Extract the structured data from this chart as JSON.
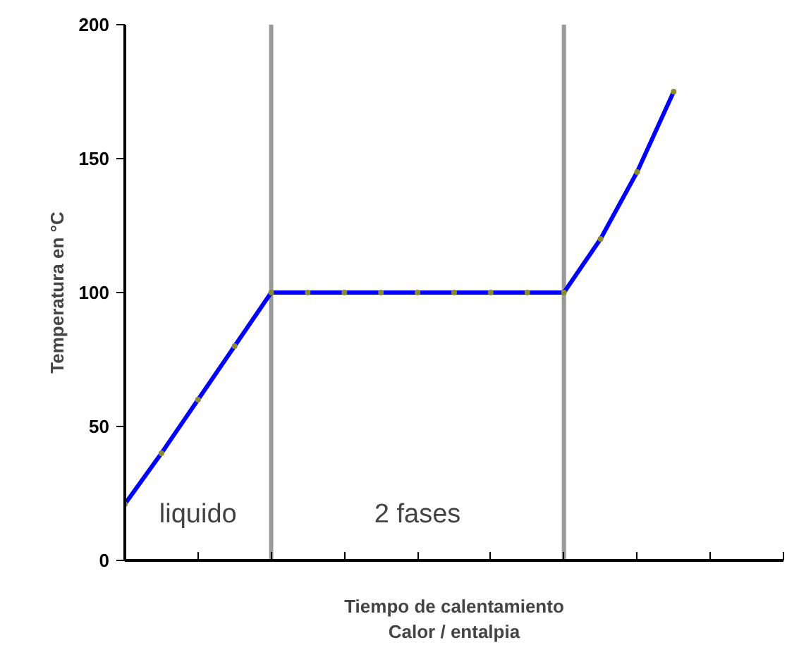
{
  "chart_data": {
    "type": "line",
    "xlabel": "Tiempo de calentamiento\nCalor / entalpia",
    "ylabel": "Temperatura en °C",
    "categories": [
      null,
      null,
      null,
      null,
      null,
      null,
      null,
      null,
      null,
      null,
      null,
      null,
      null,
      null,
      null,
      null,
      null,
      null,
      null
    ],
    "series": [
      {
        "color": "#0000ff",
        "values": [
          21,
          40,
          60,
          80,
          100,
          100,
          100,
          100,
          100,
          100,
          100,
          100,
          100,
          120,
          145,
          175,
          null,
          null,
          null
        ]
      }
    ],
    "ylim": [
      0,
      200
    ],
    "yticks": [
      0,
      50,
      100,
      150,
      200
    ],
    "annotations": [
      "liquido",
      "2 fases"
    ],
    "marker": "circle",
    "line_style": "solid",
    "grid": false
  }
}
